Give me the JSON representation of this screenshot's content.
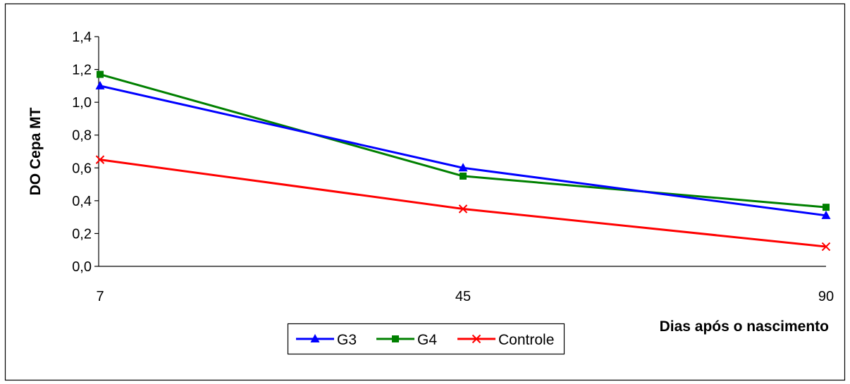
{
  "chart_data": {
    "type": "line",
    "title": "",
    "xlabel": "Dias após o nascimento",
    "ylabel": "DO Cepa MT",
    "categories": [
      "7",
      "45",
      "90"
    ],
    "ylim": [
      0,
      1.4
    ],
    "yticks": [
      "0,0",
      "0,2",
      "0,4",
      "0,6",
      "0,8",
      "1,0",
      "1,2",
      "1,4"
    ],
    "grid": false,
    "legend_position": "bottom",
    "series": [
      {
        "name": "G3",
        "values": [
          1.1,
          0.6,
          0.31
        ],
        "color": "#0000FF",
        "marker": "triangle"
      },
      {
        "name": "G4",
        "values": [
          1.17,
          0.55,
          0.36
        ],
        "color": "#008000",
        "marker": "square"
      },
      {
        "name": "Controle",
        "values": [
          0.65,
          0.35,
          0.12
        ],
        "color": "#FF0000",
        "marker": "x"
      }
    ]
  }
}
